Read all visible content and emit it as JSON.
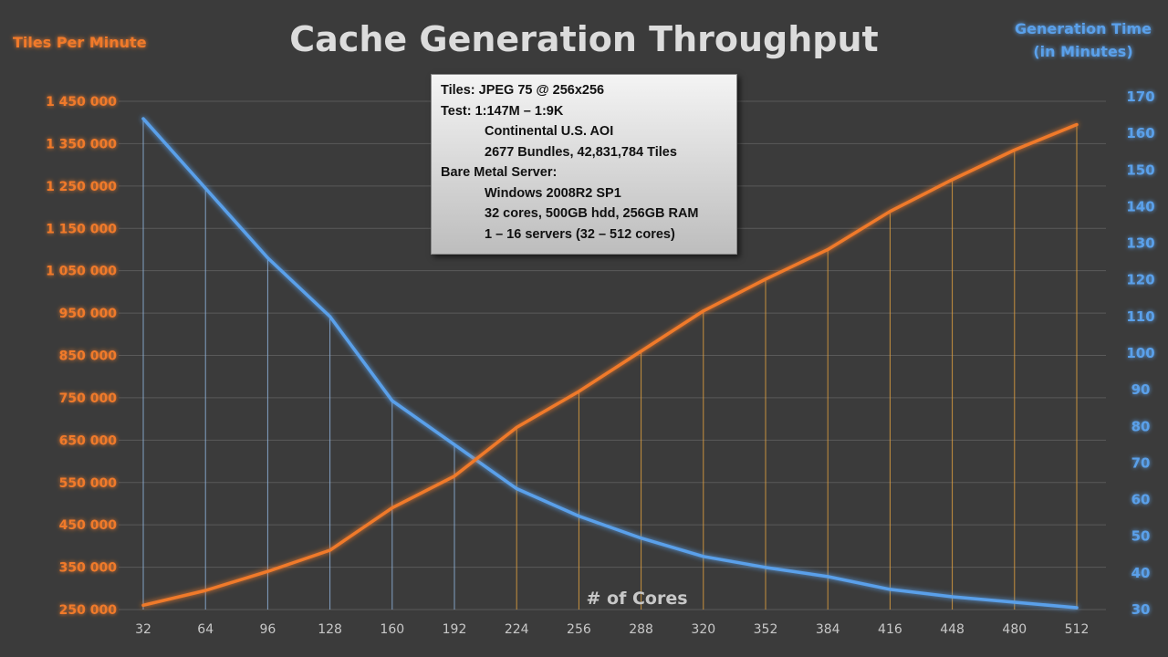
{
  "chart_data": {
    "type": "line",
    "title": "Cache Generation Throughput",
    "xlabel": "# of Cores",
    "ylabel_left": "Tiles Per Minute",
    "ylabel_right_lines": [
      "Generation Time",
      "(in Minutes)"
    ],
    "x": [
      32,
      64,
      96,
      128,
      160,
      192,
      224,
      256,
      288,
      320,
      352,
      384,
      416,
      448,
      480,
      512
    ],
    "y_left_ticks": [
      "1 450 000",
      "1 350 000",
      "1 250 000",
      "1 150 000",
      "1 050 000",
      "950 000",
      "850 000",
      "750 000",
      "650 000",
      "550 000",
      "450 000",
      "350 000",
      "250 000"
    ],
    "y_left_range": [
      250000,
      1450000
    ],
    "y_right_ticks": [
      "170",
      "160",
      "150",
      "140",
      "130",
      "120",
      "110",
      "100",
      "90",
      "80",
      "70",
      "60",
      "50",
      "40",
      "30"
    ],
    "y_right_range": [
      30,
      170
    ],
    "grid": true,
    "series": [
      {
        "axis": "left",
        "color": "#f07a2a",
        "values": [
          260000,
          295000,
          340000,
          390000,
          490000,
          565000,
          680000,
          765000,
          860000,
          955000,
          1030000,
          1100000,
          1190000,
          1265000,
          1335000,
          1395000
        ]
      },
      {
        "axis": "right",
        "color": "#5aa0ea",
        "values": [
          164,
          145,
          126,
          110,
          87,
          75,
          63,
          55.5,
          49.5,
          44.5,
          41.5,
          39,
          35.5,
          33.5,
          32,
          30.5
        ]
      }
    ]
  },
  "info_box": {
    "lines": [
      {
        "text": "Tiles: JPEG 75 @ 256x256",
        "indent": false
      },
      {
        "text": "Test: 1:147M – 1:9K",
        "indent": false
      },
      {
        "text": "Continental U.S. AOI",
        "indent": true
      },
      {
        "text": "2677 Bundles, 42,831,784 Tiles",
        "indent": true
      },
      {
        "text": "Bare Metal Server:",
        "indent": false
      },
      {
        "text": "Windows 2008R2 SP1",
        "indent": true
      },
      {
        "text": "32 cores, 500GB hdd, 256GB RAM",
        "indent": true
      },
      {
        "text": "1 – 16 servers (32 – 512 cores)",
        "indent": true
      }
    ]
  }
}
